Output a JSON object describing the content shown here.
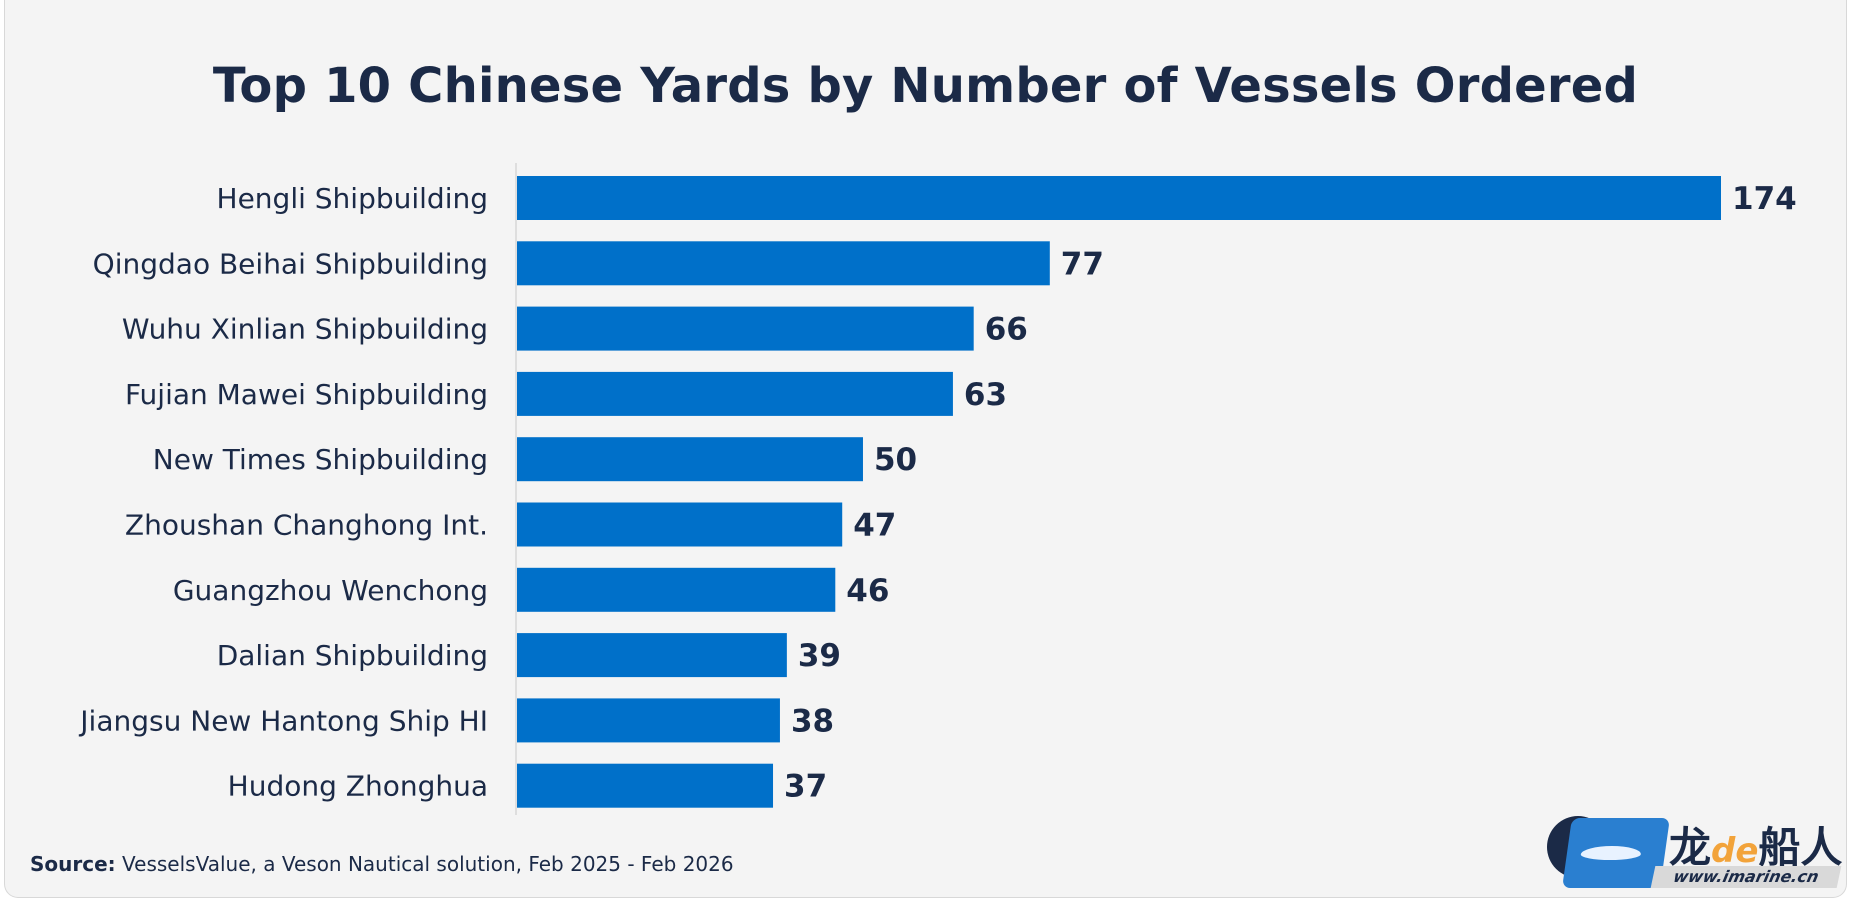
{
  "chart_data": {
    "type": "bar",
    "orientation": "horizontal",
    "title": "Top 10 Chinese Yards by Number of Vessels Ordered",
    "categories": [
      "Hengli Shipbuilding",
      "Qingdao Beihai Shipbuilding",
      "Wuhu Xinlian Shipbuilding",
      "Fujian Mawei Shipbuilding",
      "New Times Shipbuilding",
      "Zhoushan Changhong Int.",
      "Guangzhou Wenchong",
      "Dalian Shipbuilding",
      "Jiangsu New Hantong Ship HI",
      "Hudong Zhonghua"
    ],
    "values": [
      174,
      77,
      66,
      63,
      50,
      47,
      46,
      39,
      38,
      37
    ],
    "xlim": [
      0,
      174
    ],
    "grid": false,
    "legend": "none",
    "data_labels": true,
    "bar_color": "#0070c9",
    "text_color": "#1b2a47"
  },
  "source": {
    "label": "Source:",
    "text": " VesselsValue, a Veson Nautical solution, Feb 2025 - Feb 2026"
  },
  "watermark": {
    "brand_left": "龙",
    "brand_accent": "de",
    "brand_right": "船人",
    "url": "www.imarine.cn"
  }
}
